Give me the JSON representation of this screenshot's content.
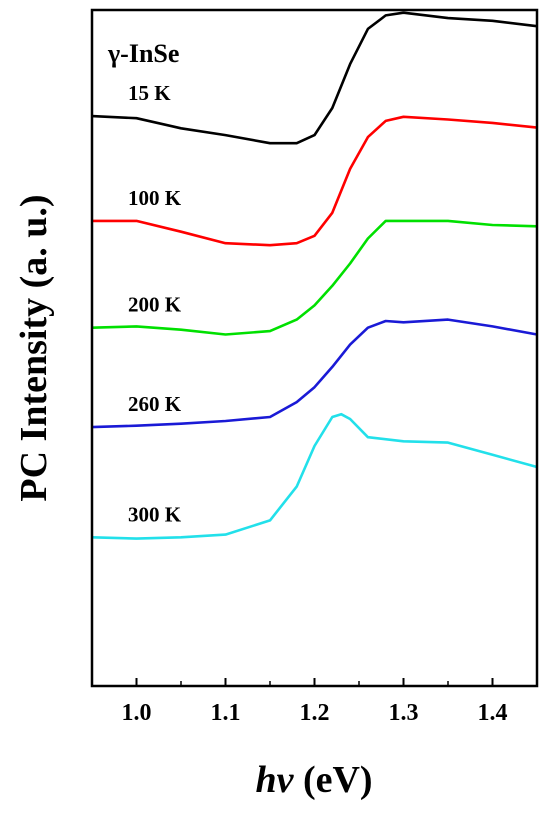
{
  "chart_data": {
    "type": "line",
    "title": "γ-InSe",
    "xlabel_italic": "hν",
    "xlabel_unit": " (eV)",
    "ylabel": "PC Intensity (a. u.)",
    "xlim": [
      0.95,
      1.45
    ],
    "ylim": [
      0,
      10
    ],
    "y_ticks_shown": false,
    "grid": false,
    "x_ticks": [
      "1.0",
      "1.1",
      "1.2",
      "1.3",
      "1.4"
    ],
    "series": [
      {
        "name": "15 K",
        "color": "#000000",
        "x": [
          0.95,
          1.0,
          1.05,
          1.1,
          1.15,
          1.18,
          1.2,
          1.22,
          1.24,
          1.26,
          1.28,
          1.3,
          1.35,
          1.4,
          1.45
        ],
        "y": [
          8.43,
          8.4,
          8.25,
          8.15,
          8.03,
          8.03,
          8.15,
          8.55,
          9.2,
          9.72,
          9.92,
          9.96,
          9.88,
          9.84,
          9.76
        ]
      },
      {
        "name": "100 K",
        "color": "#ff0000",
        "x": [
          0.95,
          1.0,
          1.05,
          1.1,
          1.15,
          1.18,
          1.2,
          1.22,
          1.24,
          1.26,
          1.28,
          1.3,
          1.35,
          1.4,
          1.45
        ],
        "y": [
          6.88,
          6.88,
          6.72,
          6.55,
          6.52,
          6.55,
          6.66,
          7.0,
          7.65,
          8.12,
          8.36,
          8.42,
          8.38,
          8.33,
          8.26
        ]
      },
      {
        "name": "200 K",
        "color": "#00e000",
        "x": [
          0.95,
          1.0,
          1.05,
          1.1,
          1.15,
          1.18,
          1.2,
          1.22,
          1.24,
          1.26,
          1.28,
          1.3,
          1.35,
          1.4,
          1.45
        ],
        "y": [
          5.3,
          5.32,
          5.27,
          5.2,
          5.25,
          5.42,
          5.63,
          5.92,
          6.25,
          6.62,
          6.88,
          6.88,
          6.88,
          6.82,
          6.8
        ]
      },
      {
        "name": "260 K",
        "color": "#1a1ad6",
        "x": [
          0.95,
          1.0,
          1.05,
          1.1,
          1.15,
          1.18,
          1.2,
          1.22,
          1.24,
          1.26,
          1.28,
          1.3,
          1.35,
          1.4,
          1.45
        ],
        "y": [
          3.83,
          3.85,
          3.88,
          3.92,
          3.98,
          4.2,
          4.42,
          4.72,
          5.05,
          5.3,
          5.4,
          5.38,
          5.42,
          5.32,
          5.2
        ]
      },
      {
        "name": "300 K",
        "color": "#22e0ea",
        "x": [
          0.95,
          1.0,
          1.05,
          1.1,
          1.15,
          1.18,
          1.2,
          1.22,
          1.23,
          1.24,
          1.26,
          1.3,
          1.35,
          1.4,
          1.45
        ],
        "y": [
          2.2,
          2.18,
          2.2,
          2.24,
          2.45,
          2.95,
          3.55,
          3.98,
          4.02,
          3.95,
          3.68,
          3.62,
          3.6,
          3.42,
          3.24
        ]
      }
    ]
  }
}
